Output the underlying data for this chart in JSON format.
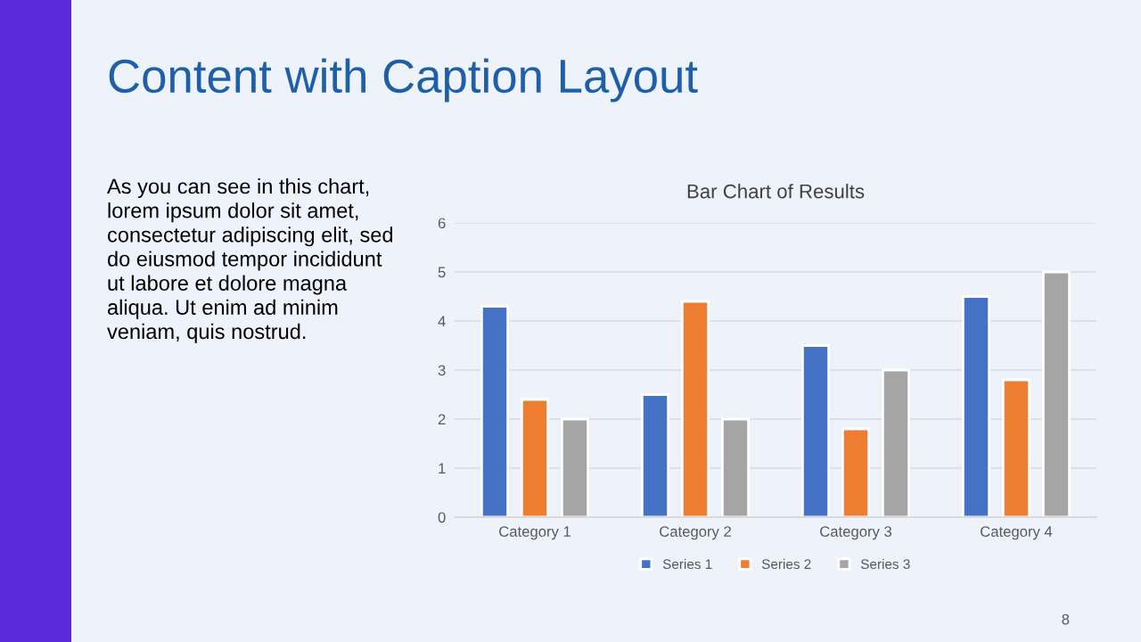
{
  "chart_data": {
    "type": "bar",
    "title": "Bar Chart of Results",
    "categories": [
      "Category 1",
      "Category 2",
      "Category 3",
      "Category 4"
    ],
    "series": [
      {
        "name": "Series 1",
        "color": "#4472c4",
        "values": [
          4.3,
          2.5,
          3.5,
          4.5
        ]
      },
      {
        "name": "Series 2",
        "color": "#ed7d31",
        "values": [
          2.4,
          4.4,
          1.8,
          2.8
        ]
      },
      {
        "name": "Series 3",
        "color": "#a5a5a5",
        "values": [
          2,
          2,
          3,
          5
        ]
      }
    ],
    "ylim": [
      0,
      6
    ],
    "yticks": [
      0,
      1,
      2,
      3,
      4,
      5,
      6
    ],
    "grid": "y",
    "legend": "bottom",
    "annotations": [
      "Content with Caption Layout",
      "As you can see in this chart,\nlorem ipsum dolor sit amet,\nconsectetur adipiscing elit, sed\ndo eiusmod tempor incididunt\nut labore et dolore magna\naliqua. Ut enim ad minim\nveniam, quis nostrud.",
      "8"
    ]
  }
}
